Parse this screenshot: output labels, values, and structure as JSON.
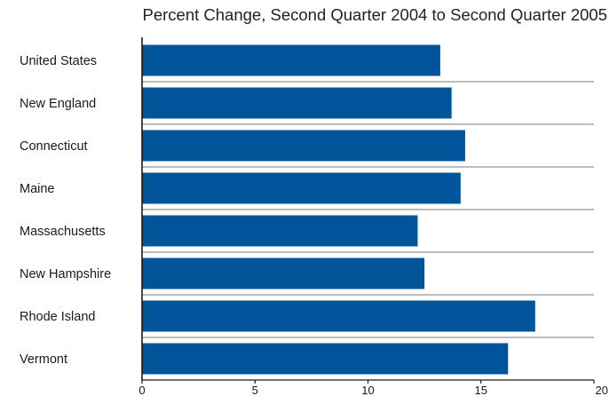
{
  "chart_data": {
    "type": "bar",
    "orientation": "horizontal",
    "title": "Percent Change, Second Quarter 2004 to Second Quarter 2005",
    "xlabel": "",
    "ylabel": "",
    "categories": [
      "United States",
      "New England",
      "Connecticut",
      "Maine",
      "Massachusetts",
      "New Hampshire",
      "Rhode Island",
      "Vermont"
    ],
    "values": [
      13.2,
      13.7,
      14.3,
      14.1,
      12.2,
      12.5,
      17.4,
      16.2
    ],
    "xlim": [
      0,
      20
    ],
    "x_ticks": [
      0,
      5,
      10,
      15,
      20
    ],
    "grid": "horizontal separators between categories",
    "legend": "none",
    "bar_color": "#00559a",
    "separator_color": "#a6a6a6",
    "axis_color": "#1a1a1a"
  }
}
